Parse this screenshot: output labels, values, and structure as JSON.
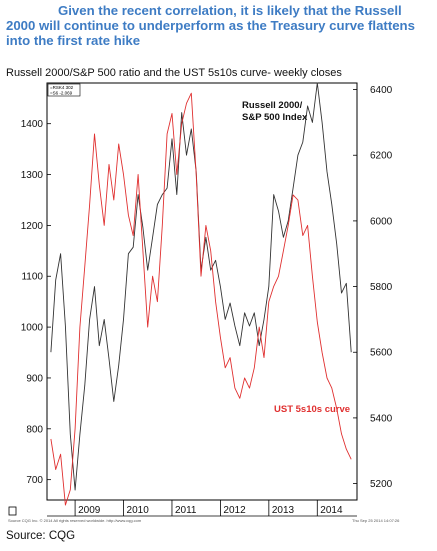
{
  "headline": "Given the recent correlation, it is likely that the Russell 2000 will continue to underperform as the Treasury curve flattens into the first rate hike",
  "subtitle": "Russell 2000/S&P 500 ratio and the UST 5s10s curve- weekly closes",
  "source": "Source: CQG",
  "footer_left": "Source CQG Inc. © 2014 All rights reserved worldwide. http://www.cqg.com",
  "footer_right": "Thu Sep 25 2014 14:07:26",
  "box_lines": [
    "=RSK4 302",
    "=S6 -2.069"
  ],
  "colors": {
    "headline": "#3e7cc4",
    "russell": "#333333",
    "ust": "#e03030"
  },
  "chart_data": {
    "type": "line",
    "x_tick_labels": [
      "2009",
      "2010",
      "2011",
      "2012",
      "2013",
      "2014"
    ],
    "left_axis": {
      "ticks": [
        700,
        800,
        900,
        1000,
        1100,
        1200,
        1300,
        1400
      ],
      "range": [
        660,
        1480
      ]
    },
    "right_axis": {
      "ticks": [
        5200,
        5400,
        5600,
        5800,
        6000,
        6200,
        6400
      ],
      "range": [
        5150,
        6420
      ]
    },
    "series": [
      {
        "name": "Russell 2000/ S&P 500 Index",
        "axis": "right",
        "x": [
          2008.5,
          2008.6,
          2008.7,
          2008.8,
          2008.9,
          2009.0,
          2009.1,
          2009.2,
          2009.3,
          2009.4,
          2009.5,
          2009.6,
          2009.7,
          2009.8,
          2009.9,
          2010.0,
          2010.1,
          2010.2,
          2010.3,
          2010.4,
          2010.5,
          2010.6,
          2010.7,
          2010.8,
          2010.9,
          2011.0,
          2011.1,
          2011.2,
          2011.3,
          2011.4,
          2011.5,
          2011.6,
          2011.7,
          2011.8,
          2011.9,
          2012.0,
          2012.1,
          2012.2,
          2012.3,
          2012.4,
          2012.5,
          2012.6,
          2012.7,
          2012.8,
          2012.9,
          2013.0,
          2013.1,
          2013.2,
          2013.3,
          2013.4,
          2013.5,
          2013.6,
          2013.7,
          2013.8,
          2013.9,
          2014.0,
          2014.1,
          2014.2,
          2014.3,
          2014.4,
          2014.5,
          2014.6,
          2014.7
        ],
        "y": [
          5600,
          5820,
          5900,
          5680,
          5350,
          5180,
          5350,
          5500,
          5700,
          5800,
          5620,
          5700,
          5580,
          5450,
          5560,
          5700,
          5900,
          5920,
          6080,
          5980,
          5850,
          5950,
          6050,
          6080,
          6100,
          6250,
          6080,
          6330,
          6200,
          6280,
          6150,
          5850,
          5950,
          5850,
          5880,
          5800,
          5700,
          5750,
          5680,
          5620,
          5720,
          5680,
          5720,
          5620,
          5700,
          5800,
          6080,
          6030,
          5950,
          6000,
          6100,
          6200,
          6240,
          6350,
          6300,
          6420,
          6300,
          6150,
          6050,
          5930,
          5780,
          5810,
          5600
        ]
      },
      {
        "name": "UST 5s10s curve",
        "axis": "left",
        "x": [
          2008.5,
          2008.6,
          2008.7,
          2008.8,
          2008.9,
          2009.0,
          2009.1,
          2009.2,
          2009.3,
          2009.4,
          2009.5,
          2009.6,
          2009.7,
          2009.8,
          2009.9,
          2010.0,
          2010.1,
          2010.2,
          2010.3,
          2010.4,
          2010.5,
          2010.6,
          2010.7,
          2010.8,
          2010.9,
          2011.0,
          2011.1,
          2011.2,
          2011.3,
          2011.4,
          2011.5,
          2011.6,
          2011.7,
          2011.8,
          2011.9,
          2012.0,
          2012.1,
          2012.2,
          2012.3,
          2012.4,
          2012.5,
          2012.6,
          2012.7,
          2012.8,
          2012.9,
          2013.0,
          2013.1,
          2013.2,
          2013.3,
          2013.4,
          2013.5,
          2013.6,
          2013.7,
          2013.8,
          2013.9,
          2014.0,
          2014.1,
          2014.2,
          2014.3,
          2014.4,
          2014.5,
          2014.6,
          2014.7
        ],
        "y": [
          780,
          720,
          750,
          650,
          680,
          800,
          1000,
          1120,
          1240,
          1380,
          1280,
          1200,
          1320,
          1250,
          1360,
          1300,
          1220,
          1180,
          1300,
          1150,
          1000,
          1100,
          1050,
          1200,
          1380,
          1420,
          1300,
          1400,
          1440,
          1460,
          1300,
          1100,
          1200,
          1150,
          1050,
          980,
          920,
          940,
          880,
          860,
          900,
          880,
          920,
          1000,
          940,
          1050,
          1080,
          1100,
          1150,
          1200,
          1260,
          1250,
          1180,
          1200,
          1100,
          1010,
          950,
          900,
          880,
          840,
          790,
          760,
          740
        ]
      }
    ],
    "annotations": [
      "Russell 2000/ S&P 500 Index",
      "UST 5s10s curve"
    ],
    "grid": false
  }
}
